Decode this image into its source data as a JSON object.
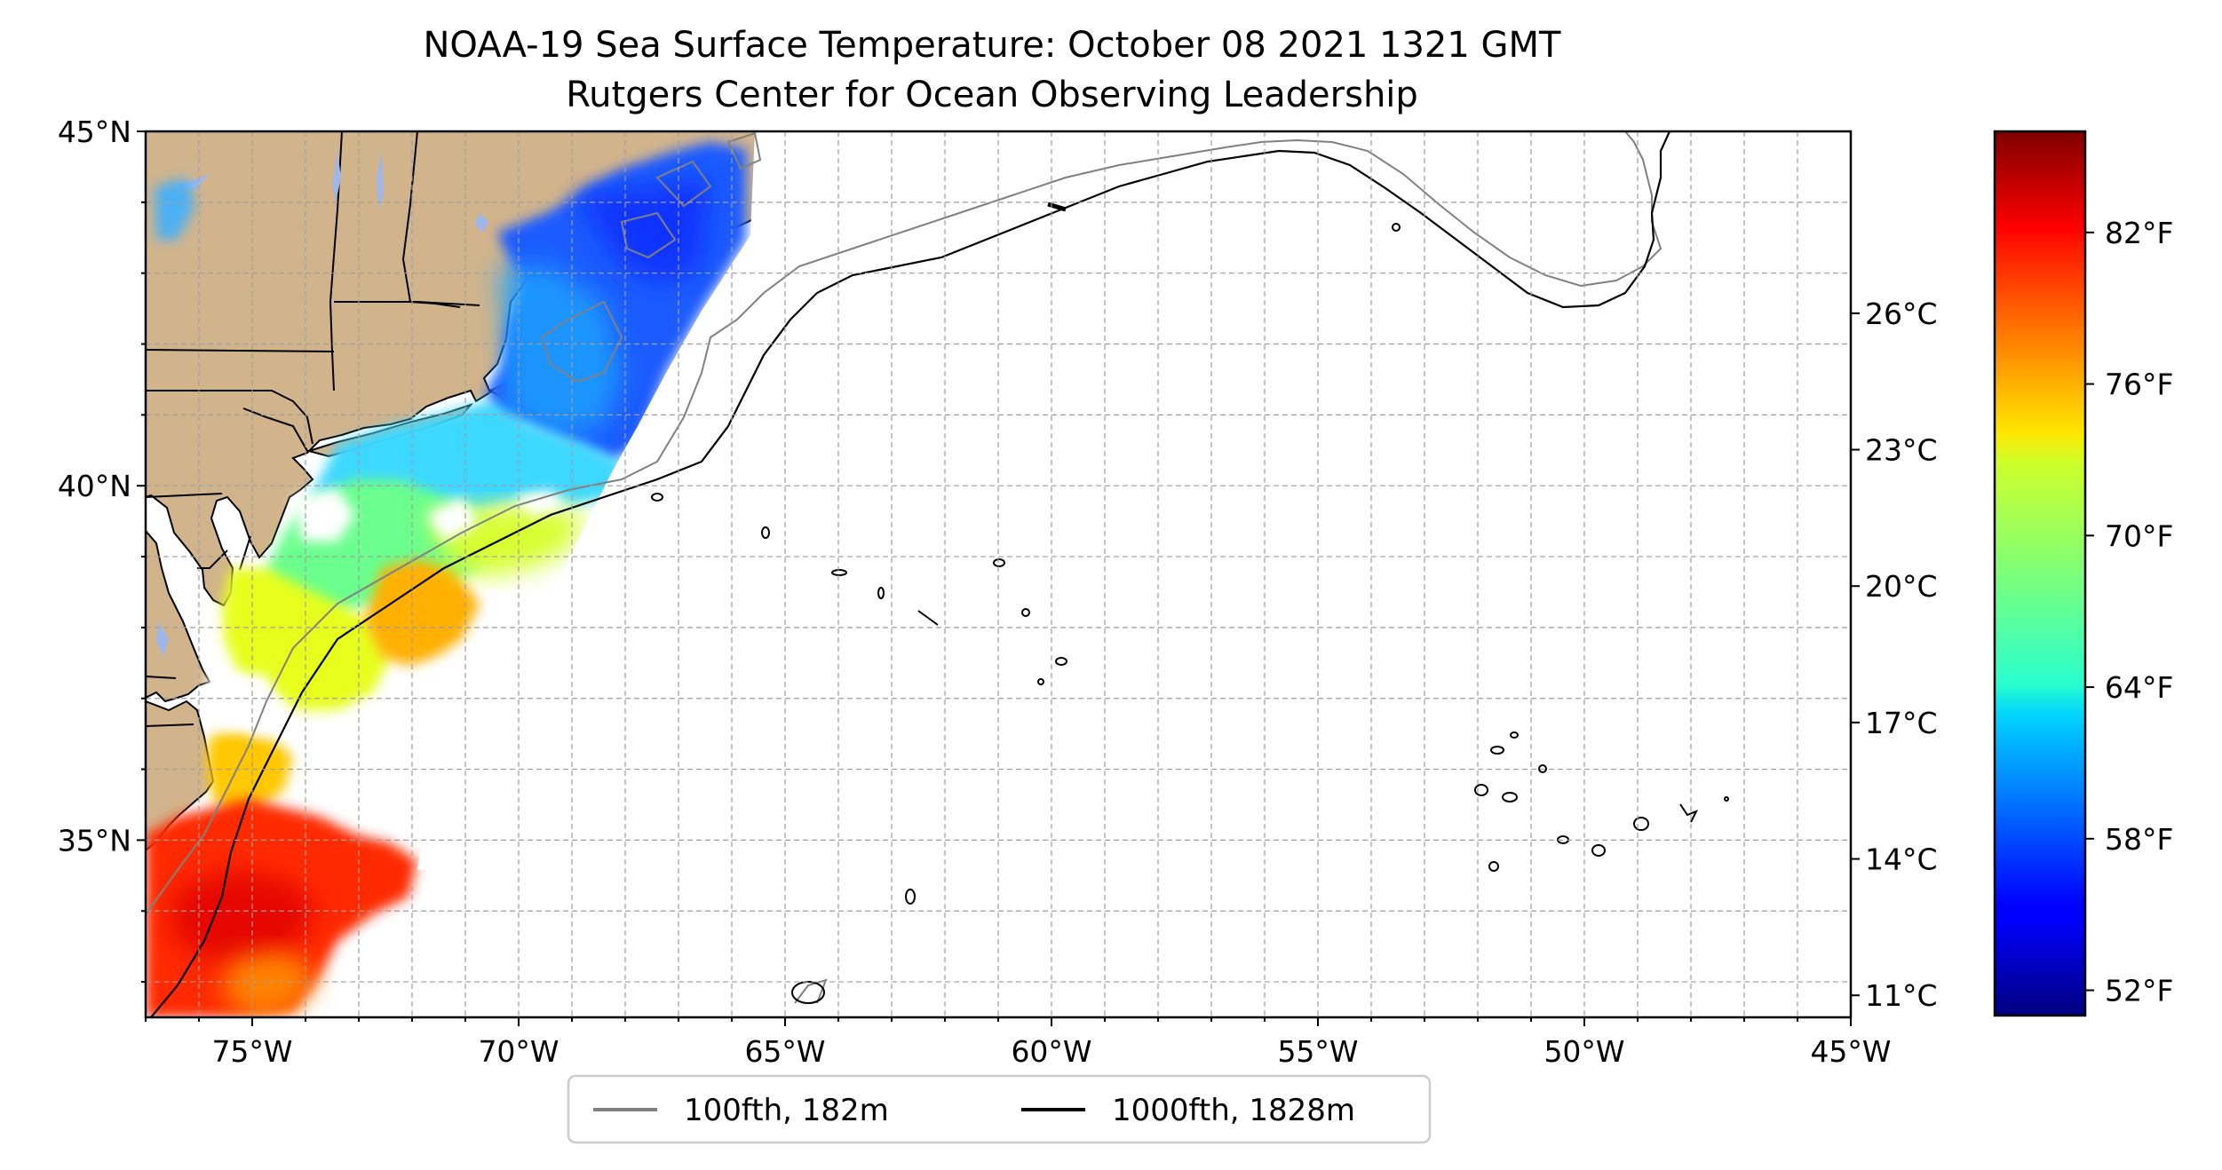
{
  "title": {
    "line1": "NOAA-19 Sea Surface Temperature: October 08 2021 1321 GMT",
    "line2": "Rutgers Center for Ocean Observing Leadership"
  },
  "map": {
    "lon_range": [
      -77,
      -45
    ],
    "lat_range": [
      32.5,
      45
    ],
    "land_color": "#d2b48c",
    "water_color": "#9fb7e8",
    "grid": "dashed",
    "lat_ticks": [
      {
        "lat": 45,
        "label": "45°N"
      },
      {
        "lat": 40,
        "label": "40°N"
      },
      {
        "lat": 35,
        "label": "35°N"
      }
    ],
    "lon_ticks": [
      {
        "lon": -75,
        "label": "75°W"
      },
      {
        "lon": -70,
        "label": "70°W"
      },
      {
        "lon": -65,
        "label": "65°W"
      },
      {
        "lon": -60,
        "label": "60°W"
      },
      {
        "lon": -55,
        "label": "55°W"
      },
      {
        "lon": -50,
        "label": "50°W"
      },
      {
        "lon": -45,
        "label": "45°W"
      }
    ]
  },
  "colorbar": {
    "colormap": "jet",
    "range_f": [
      51,
      86
    ],
    "celsius_ticks": [
      {
        "c": 11,
        "label": "11°C"
      },
      {
        "c": 14,
        "label": "14°C"
      },
      {
        "c": 17,
        "label": "17°C"
      },
      {
        "c": 20,
        "label": "20°C"
      },
      {
        "c": 23,
        "label": "23°C"
      },
      {
        "c": 26,
        "label": "26°C"
      }
    ],
    "fahrenheit_ticks": [
      {
        "f": 52,
        "label": "52°F"
      },
      {
        "f": 58,
        "label": "58°F"
      },
      {
        "f": 64,
        "label": "64°F"
      },
      {
        "f": 70,
        "label": "70°F"
      },
      {
        "f": 76,
        "label": "76°F"
      },
      {
        "f": 82,
        "label": "82°F"
      }
    ]
  },
  "legend": {
    "placement": "bottom-center",
    "items": [
      {
        "label": "100fth, 182m",
        "color": "#808080"
      },
      {
        "label": "1000fth, 1828m",
        "color": "#000000"
      }
    ]
  }
}
